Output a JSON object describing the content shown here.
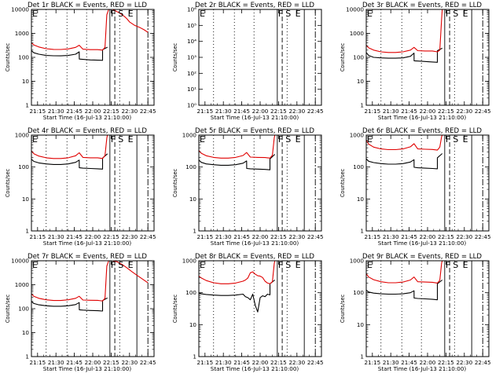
{
  "chart_data": [
    {
      "title": "Det 1r BLACK = Events, RED = LLD",
      "type": "line",
      "yscale": "log",
      "ylim": [
        1,
        10000
      ],
      "yticks": [
        "1",
        "10",
        "100",
        "1000",
        "10000"
      ],
      "ylabel": "Counts/sec",
      "xlabel": "Start Time (16-Jul-13 21:10:00)",
      "xticks": [
        "21:15",
        "21:30",
        "21:45",
        "22:00",
        "22:15",
        "22:30",
        "22:45"
      ],
      "flag_labels": [
        "E",
        "F",
        "S",
        "E"
      ],
      "series": [
        {
          "color": "#000000",
          "x": [
            0,
            2,
            6,
            12,
            18,
            24,
            30,
            36,
            39,
            39.01,
            42,
            48,
            54,
            58,
            58.01,
            62
          ],
          "y": [
            190,
            155,
            135,
            120,
            116,
            115,
            120,
            135,
            170,
            85,
            82,
            78,
            76,
            75,
            210,
            265
          ]
        },
        {
          "color": "#e00000",
          "x": [
            0,
            2,
            6,
            12,
            18,
            24,
            30,
            36,
            39,
            42,
            48,
            54,
            58,
            60,
            61.5,
            63,
            64,
            66,
            68,
            70,
            72,
            74,
            76,
            78,
            80,
            84,
            88,
            92,
            95
          ],
          "y": [
            400,
            330,
            270,
            230,
            215,
            213,
            225,
            260,
            320,
            220,
            210,
            210,
            200,
            260,
            6000,
            10000,
            10000,
            10000,
            9000,
            8000,
            7000,
            6000,
            5000,
            4000,
            3000,
            2200,
            1800,
            1400,
            1100
          ]
        }
      ]
    },
    {
      "title": "Det 2r BLACK = Events, RED = LLD",
      "type": "line",
      "yscale": "log",
      "ylim": [
        1,
        1000000
      ],
      "yticks": [
        "10⁰",
        "10¹",
        "10²",
        "10³",
        "10⁴",
        "10⁵",
        "10⁶"
      ],
      "ylabel": "Counts/sec",
      "xlabel": "Start Time (16-Jul-13 21:10:00)",
      "xticks": [
        "21:15",
        "21:30",
        "21:45",
        "22:00",
        "22:15",
        "22:30",
        "22:45"
      ],
      "flag_labels": [
        "E",
        "F",
        "S",
        "E"
      ],
      "series": []
    },
    {
      "title": "Det 3r BLACK = Events, RED = LLD",
      "type": "line",
      "yscale": "log",
      "ylim": [
        1,
        10000
      ],
      "yticks": [
        "1",
        "10",
        "100",
        "1000",
        "10000"
      ],
      "ylabel": "Counts/sec",
      "xlabel": "Start Time (16-Jul-13 21:10:00)",
      "xticks": [
        "21:15",
        "21:30",
        "21:45",
        "22:00",
        "22:15",
        "22:30",
        "22:45"
      ],
      "flag_labels": [
        "E",
        "F",
        "S",
        "E"
      ],
      "series": [
        {
          "color": "#000000",
          "x": [
            0,
            2,
            6,
            12,
            18,
            24,
            30,
            36,
            39,
            39.01,
            42,
            48,
            54,
            58,
            58.01,
            62
          ],
          "y": [
            160,
            120,
            100,
            95,
            92,
            92,
            95,
            110,
            150,
            72,
            70,
            67,
            64,
            62,
            190,
            240
          ]
        },
        {
          "color": "#e00000",
          "x": [
            0,
            2,
            6,
            12,
            18,
            24,
            30,
            36,
            39,
            42,
            48,
            54,
            58,
            60,
            61.5,
            62
          ],
          "y": [
            320,
            250,
            200,
            170,
            160,
            160,
            170,
            200,
            260,
            190,
            185,
            185,
            170,
            200,
            4000,
            10000
          ]
        }
      ]
    },
    {
      "title": "Det 4r BLACK = Events, RED = LLD",
      "type": "line",
      "yscale": "log",
      "ylim": [
        1,
        1000
      ],
      "yticks": [
        "1",
        "10",
        "100",
        "1000"
      ],
      "ylabel": "Counts/sec",
      "xlabel": "Start Time (16-Jul-13 21:10:00)",
      "xticks": [
        "21:15",
        "21:30",
        "21:45",
        "22:00",
        "22:15",
        "22:30",
        "22:45"
      ],
      "flag_labels": [
        "E",
        "F",
        "S",
        "E"
      ],
      "series": [
        {
          "color": "#000000",
          "x": [
            0,
            2,
            6,
            12,
            18,
            24,
            30,
            36,
            39,
            39.01,
            42,
            48,
            54,
            58,
            58.01,
            62
          ],
          "y": [
            175,
            150,
            135,
            125,
            120,
            120,
            125,
            140,
            165,
            95,
            92,
            90,
            88,
            86,
            190,
            260
          ]
        },
        {
          "color": "#e00000",
          "x": [
            0,
            2,
            6,
            12,
            18,
            24,
            30,
            36,
            39,
            42,
            48,
            54,
            58,
            60,
            61.5,
            62
          ],
          "y": [
            320,
            260,
            220,
            195,
            185,
            185,
            195,
            225,
            280,
            200,
            195,
            195,
            185,
            230,
            800,
            1000
          ]
        }
      ]
    },
    {
      "title": "Det 5r BLACK = Events, RED = LLD",
      "type": "line",
      "yscale": "log",
      "ylim": [
        1,
        1000
      ],
      "yticks": [
        "1",
        "10",
        "100",
        "1000"
      ],
      "ylabel": "Counts/sec",
      "xlabel": "Start Time (16-Jul-13 21:10:00)",
      "xticks": [
        "21:15",
        "21:30",
        "21:45",
        "22:00",
        "22:15",
        "22:30",
        "22:45"
      ],
      "flag_labels": [
        "E",
        "F",
        "S",
        "E"
      ],
      "series": [
        {
          "color": "#000000",
          "x": [
            0,
            2,
            6,
            12,
            18,
            24,
            30,
            36,
            39,
            39.01,
            42,
            48,
            54,
            58,
            58.01,
            62
          ],
          "y": [
            165,
            140,
            125,
            118,
            114,
            114,
            118,
            132,
            155,
            90,
            88,
            86,
            84,
            82,
            180,
            250
          ]
        },
        {
          "color": "#e00000",
          "x": [
            0,
            2,
            6,
            12,
            18,
            24,
            30,
            36,
            39,
            42,
            48,
            54,
            58,
            60,
            61.5,
            62
          ],
          "y": [
            330,
            270,
            225,
            200,
            190,
            190,
            200,
            230,
            285,
            205,
            200,
            198,
            190,
            235,
            800,
            1000
          ]
        }
      ]
    },
    {
      "title": "Det 6r BLACK = Events, RED = LLD",
      "type": "line",
      "yscale": "log",
      "ylim": [
        1,
        1000
      ],
      "yticks": [
        "1",
        "10",
        "100",
        "1000"
      ],
      "ylabel": "Counts/sec",
      "xlabel": "Start Time (16-Jul-13 21:10:00)",
      "xticks": [
        "21:15",
        "21:30",
        "21:45",
        "22:00",
        "22:15",
        "22:30",
        "22:45"
      ],
      "flag_labels": [
        "E",
        "F",
        "S",
        "E"
      ],
      "series": [
        {
          "color": "#000000",
          "x": [
            0,
            2,
            6,
            12,
            18,
            24,
            30,
            36,
            39,
            39.01,
            42,
            48,
            54,
            58,
            58.01,
            62
          ],
          "y": [
            180,
            152,
            138,
            128,
            123,
            123,
            128,
            143,
            170,
            98,
            95,
            92,
            90,
            88,
            195,
            265
          ]
        },
        {
          "color": "#e00000",
          "x": [
            0,
            2,
            6,
            12,
            18,
            24,
            30,
            36,
            39,
            42,
            48,
            54,
            58,
            60,
            61.5,
            62
          ],
          "y": [
            700,
            520,
            420,
            370,
            350,
            350,
            370,
            430,
            540,
            370,
            360,
            355,
            340,
            420,
            900,
            1000
          ]
        }
      ]
    },
    {
      "title": "Det 7r BLACK = Events, RED = LLD",
      "type": "line",
      "yscale": "log",
      "ylim": [
        1,
        10000
      ],
      "yticks": [
        "1",
        "10",
        "100",
        "1000",
        "10000"
      ],
      "ylabel": "Counts/sec",
      "xlabel": "Start Time (16-Jul-13 21:10:00)",
      "xticks": [
        "21:15",
        "21:30",
        "21:45",
        "22:00",
        "22:15",
        "22:30",
        "22:45"
      ],
      "flag_labels": [
        "E",
        "F",
        "S",
        "E"
      ],
      "series": [
        {
          "color": "#000000",
          "x": [
            0,
            2,
            6,
            12,
            18,
            24,
            30,
            36,
            39,
            39.01,
            42,
            48,
            54,
            58,
            58.01,
            62
          ],
          "y": [
            200,
            165,
            145,
            132,
            126,
            126,
            132,
            148,
            180,
            90,
            87,
            84,
            82,
            80,
            220,
            280
          ]
        },
        {
          "color": "#e00000",
          "x": [
            0,
            2,
            6,
            12,
            18,
            24,
            30,
            36,
            39,
            42,
            48,
            54,
            58,
            60,
            61.5,
            63,
            66,
            70,
            74,
            78,
            82,
            86,
            90,
            95
          ],
          "y": [
            420,
            330,
            270,
            235,
            220,
            220,
            235,
            270,
            330,
            230,
            225,
            222,
            210,
            270,
            6000,
            10000,
            10000,
            9000,
            7000,
            5000,
            3500,
            2500,
            1800,
            1200
          ]
        }
      ]
    },
    {
      "title": "Det 8r BLACK = Events, RED = LLD",
      "type": "line",
      "yscale": "log",
      "ylim": [
        1,
        1000
      ],
      "yticks": [
        "1",
        "10",
        "100",
        "1000"
      ],
      "ylabel": "Counts/sec",
      "xlabel": "Start Time (16-Jul-13 21:10:00)",
      "xticks": [
        "21:15",
        "21:30",
        "21:45",
        "22:00",
        "22:15",
        "22:30",
        "22:45"
      ],
      "flag_labels": [
        "E",
        "F",
        "S",
        "E"
      ],
      "series": [
        {
          "color": "#000000",
          "x": [
            0,
            2,
            6,
            12,
            18,
            24,
            30,
            36,
            38,
            40,
            42,
            44,
            46,
            48,
            50,
            52,
            54,
            56,
            58,
            58.01,
            62
          ],
          "y": [
            100,
            92,
            88,
            84,
            82,
            82,
            84,
            90,
            75,
            70,
            60,
            90,
            40,
            25,
            70,
            80,
            75,
            90,
            85,
            190,
            250
          ]
        },
        {
          "color": "#e00000",
          "x": [
            0,
            2,
            6,
            12,
            18,
            24,
            30,
            36,
            38,
            40,
            42,
            44,
            46,
            48,
            50,
            52,
            54,
            56,
            58,
            60,
            61.5,
            62
          ],
          "y": [
            330,
            290,
            240,
            205,
            190,
            190,
            200,
            230,
            250,
            290,
            420,
            450,
            380,
            340,
            330,
            300,
            230,
            200,
            190,
            220,
            800,
            1000
          ]
        }
      ]
    },
    {
      "title": "Det 9r BLACK = Events, RED = LLD",
      "type": "line",
      "yscale": "log",
      "ylim": [
        1,
        1000
      ],
      "yticks": [
        "1",
        "10",
        "100",
        "1000"
      ],
      "ylabel": "Counts/sec",
      "xlabel": "Start Time (16-Jul-13 21:10:00)",
      "xticks": [
        "21:15",
        "21:30",
        "21:45",
        "22:00",
        "22:15",
        "22:30",
        "22:45"
      ],
      "flag_labels": [
        "E",
        "F",
        "S",
        "E"
      ],
      "series": [
        {
          "color": "#000000",
          "x": [
            0,
            2,
            6,
            12,
            18,
            24,
            30,
            36,
            39,
            39.01,
            42,
            48,
            54,
            58,
            58.01,
            62
          ],
          "y": [
            120,
            105,
            97,
            92,
            90,
            90,
            92,
            100,
            115,
            68,
            66,
            64,
            62,
            60,
            190,
            250
          ]
        },
        {
          "color": "#e00000",
          "x": [
            0,
            2,
            6,
            12,
            18,
            24,
            30,
            36,
            39,
            42,
            48,
            54,
            58,
            60,
            61.5,
            62
          ],
          "y": [
            390,
            310,
            255,
            220,
            205,
            205,
            215,
            250,
            310,
            220,
            215,
            212,
            200,
            245,
            850,
            1000
          ]
        }
      ]
    }
  ]
}
